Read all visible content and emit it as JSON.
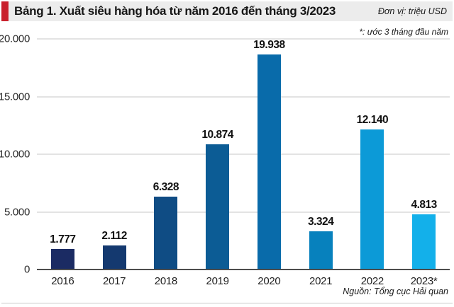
{
  "header": {
    "title": "Bảng 1. Xuất siêu hàng hóa từ năm 2016 đến tháng 3/2023",
    "unit_label": "Đơn vị: triệu USD",
    "note": "*: ước 3 tháng đầu năm",
    "accent_color": "#c9202c"
  },
  "footer": {
    "source": "Nguồn: Tổng cục Hải quan"
  },
  "chart_data": {
    "type": "bar",
    "title": "Bảng 1. Xuất siêu hàng hóa từ năm 2016 đến tháng 3/2023",
    "xlabel": "",
    "ylabel": "triệu USD",
    "categories": [
      "2016",
      "2017",
      "2018",
      "2019",
      "2020",
      "2021",
      "2022",
      "2023*"
    ],
    "values": [
      1777,
      2112,
      6328,
      10874,
      19938,
      3324,
      12140,
      4813
    ],
    "value_labels": [
      "1.777",
      "2.112",
      "6.328",
      "10.874",
      "19.938",
      "3.324",
      "12.140",
      "4.813"
    ],
    "y_ticks": [
      0,
      5000,
      10000,
      15000,
      20000
    ],
    "y_tick_labels": [
      "0",
      "5.000",
      "10.000",
      "15.000",
      "20.000"
    ],
    "ylim": [
      0,
      20000
    ],
    "grid": true,
    "legend": "none",
    "bar_colors": [
      "#1b2b63",
      "#14396f",
      "#0f4c84",
      "#0c5c95",
      "#096baa",
      "#0781bd",
      "#0c9ad7",
      "#13b0ea"
    ]
  }
}
